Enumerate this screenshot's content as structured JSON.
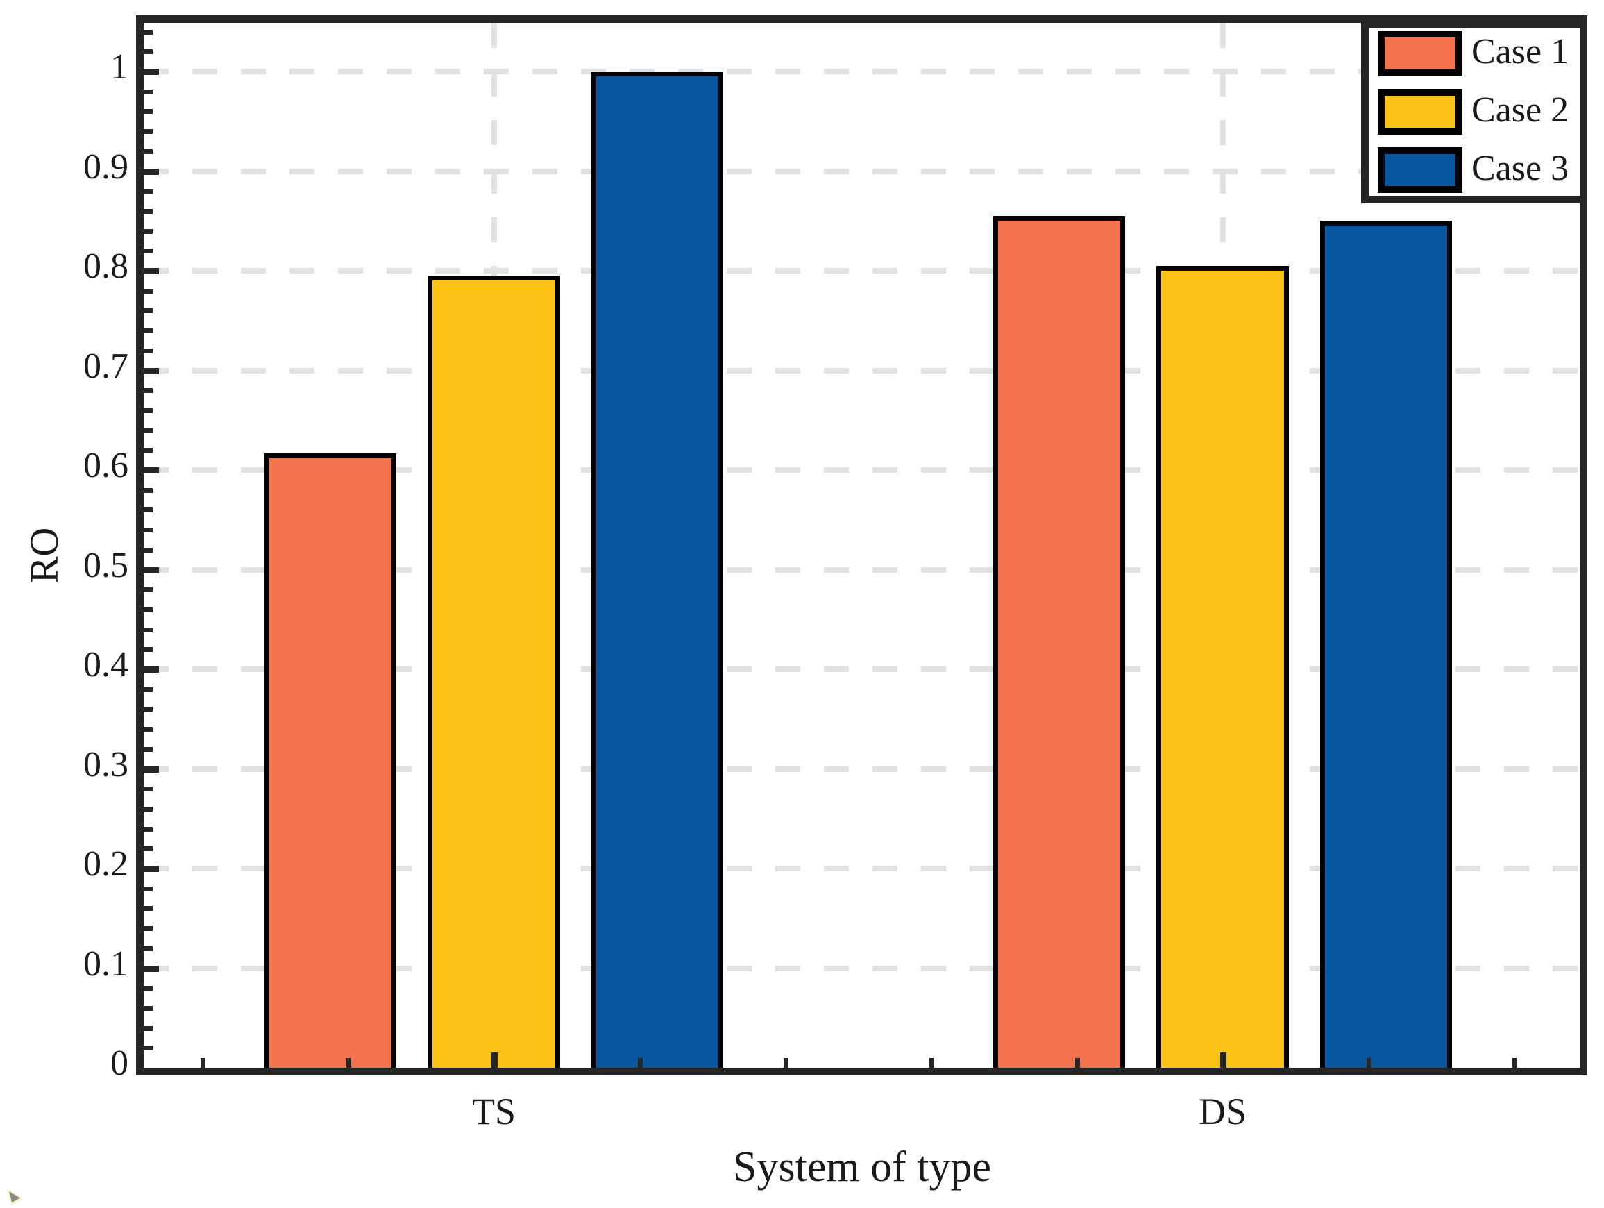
{
  "chart_data": {
    "type": "bar",
    "title": "",
    "xlabel": "System of type",
    "ylabel": "RO",
    "categories": [
      "TS",
      "DS"
    ],
    "category_positions": [
      1,
      2
    ],
    "series": [
      {
        "name": "Case 1",
        "color": "#F3744C",
        "values": [
          0.617,
          0.855
        ]
      },
      {
        "name": "Case 2",
        "color": "#FAC215",
        "values": [
          0.795,
          0.805
        ]
      },
      {
        "name": "Case 3",
        "color": "#0657A0",
        "values": [
          1.0,
          0.85
        ]
      }
    ],
    "xlim": [
      0.51,
      2.5
    ],
    "ylim": [
      0,
      1.055
    ],
    "yticks": [
      0,
      0.1,
      0.2,
      0.3,
      0.4,
      0.5,
      0.6,
      0.7,
      0.8,
      0.9,
      1
    ],
    "ytick_labels": [
      "0",
      "0.1",
      "0.2",
      "0.3",
      "0.4",
      "0.5",
      "0.6",
      "0.7",
      "0.8",
      "0.9",
      "1"
    ],
    "y_minor_step": 0.02,
    "x_minor_ticks": [
      0.6,
      0.8,
      1.2,
      1.4,
      1.6,
      1.8,
      2.2,
      2.4
    ],
    "grid": "dashed horizontal lines at y majors, dashed vertical lines at category centers",
    "legend_position": "top-right",
    "bar_width_units": 0.181,
    "bar_offset_units": 0.224,
    "axis_color": "#262626",
    "grid_color": "#e1e1e1",
    "bar_edge_color": "#000000",
    "text_color": "#1a1a1a"
  }
}
